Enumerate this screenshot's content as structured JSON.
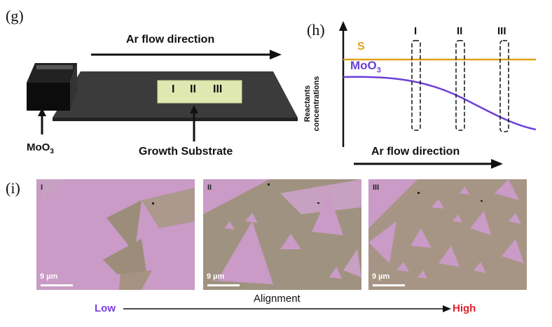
{
  "panel_g": {
    "label": "(g)",
    "flow_label": "Ar flow direction",
    "source_label_main": "MoO",
    "source_label_sub": "3",
    "substrate_label": "Growth Substrate",
    "zones": [
      "I",
      "II",
      "III"
    ]
  },
  "panel_h": {
    "label": "(h)",
    "ylabel_line1": "Reactants",
    "ylabel_line2": "concentrations",
    "xlabel": "Ar flow direction",
    "zones": [
      "I",
      "II",
      "III"
    ],
    "series": [
      {
        "name": "S",
        "color": "#e0a21a"
      },
      {
        "name": "MoO",
        "name_sub": "3",
        "color": "#6b3fd8"
      }
    ]
  },
  "panel_i": {
    "label": "(i)",
    "images": [
      {
        "zone": "I",
        "scale": "9 µm"
      },
      {
        "zone": "II",
        "scale": "9 µm"
      },
      {
        "zone": "III",
        "scale": "9 µm"
      }
    ],
    "axis_label": "Alignment",
    "low_label": "Low",
    "high_label": "High",
    "low_color": "#7b3fe0",
    "high_color": "#e0202a"
  }
}
